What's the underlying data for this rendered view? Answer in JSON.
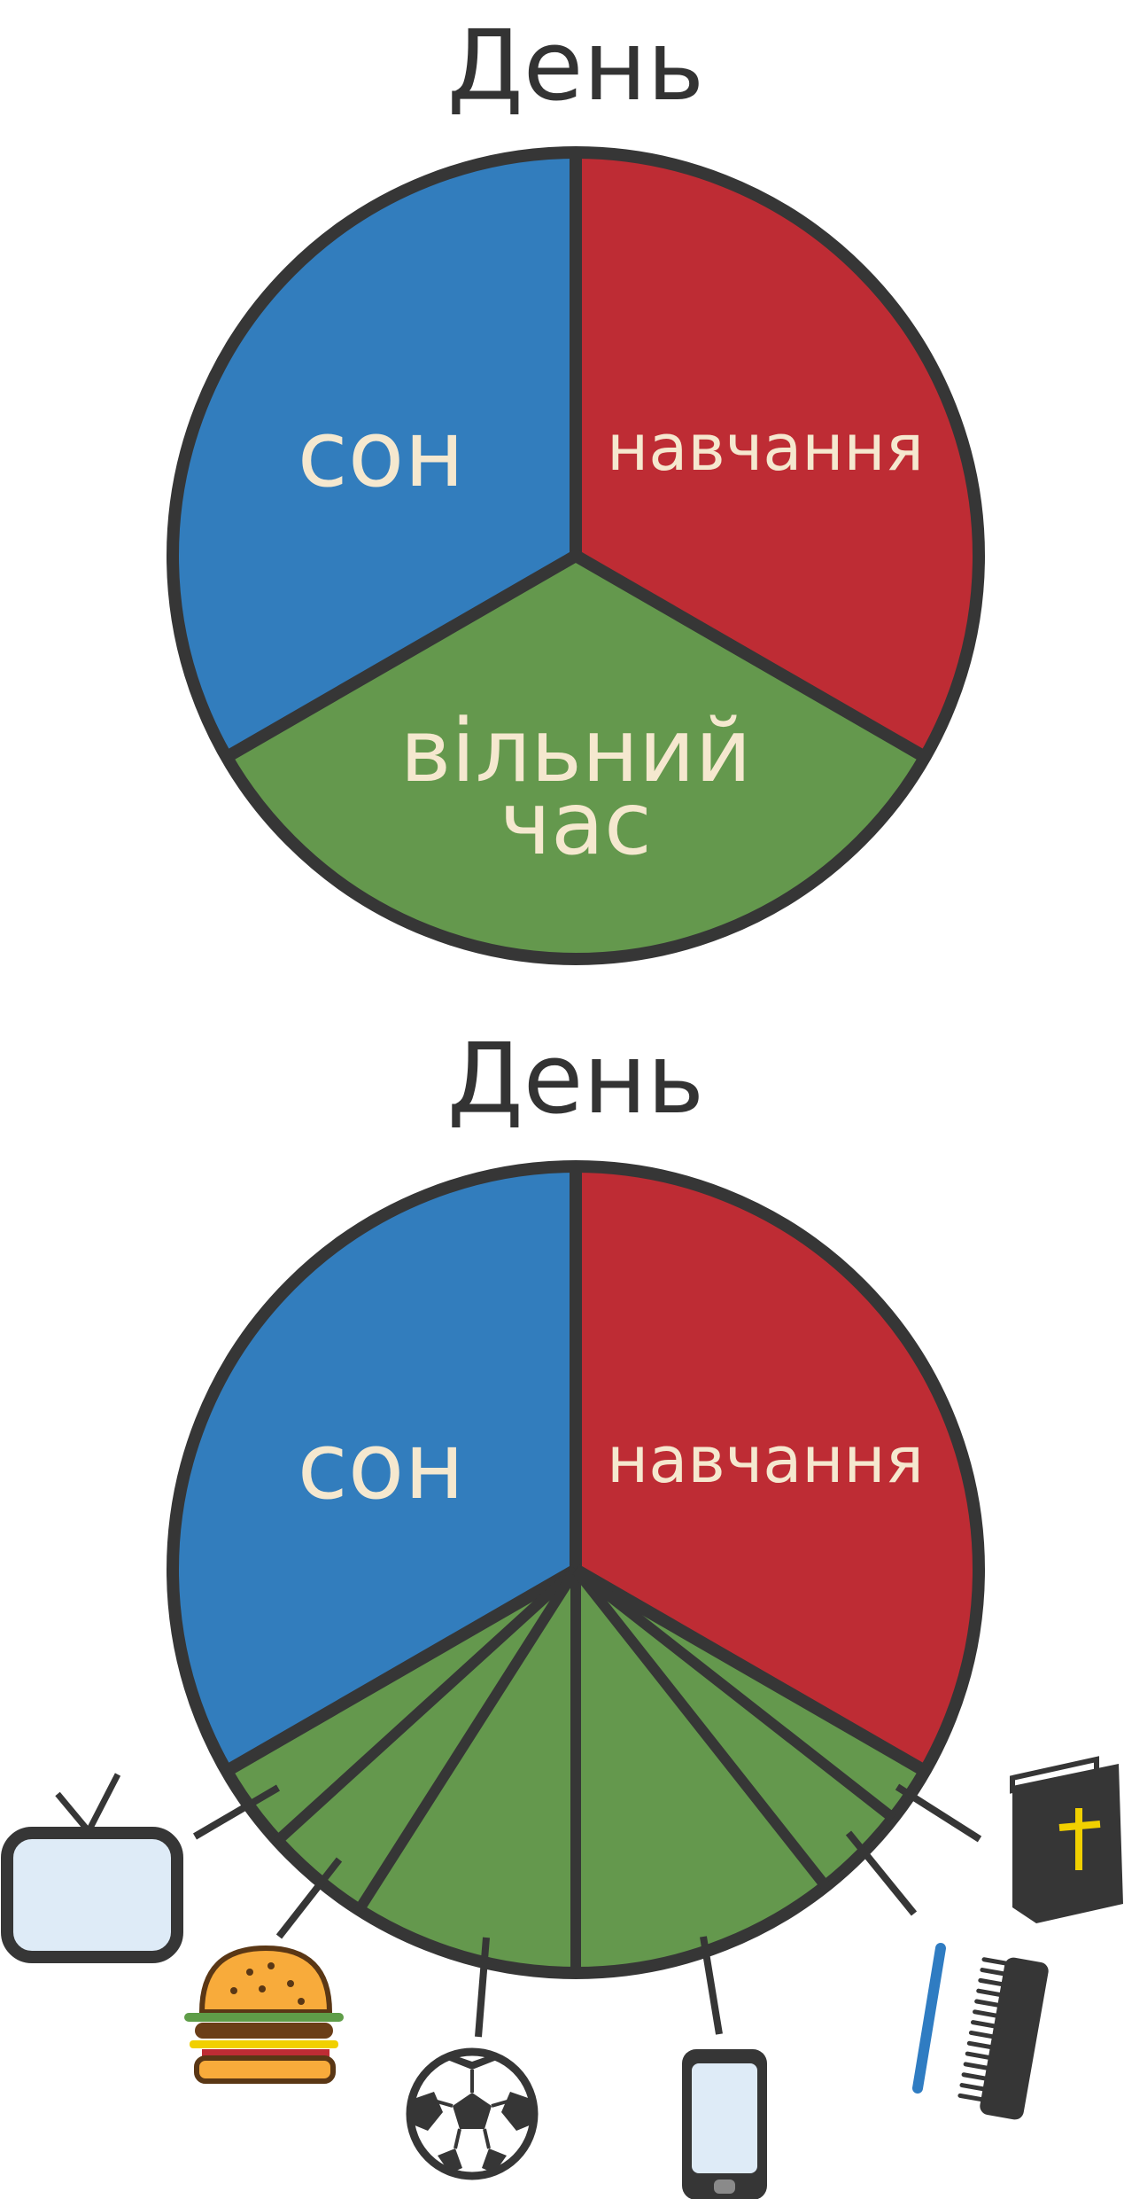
{
  "diagram1": {
    "title": "День",
    "segments": [
      {
        "label": "сон",
        "color": "#327dbd"
      },
      {
        "label": "навчання",
        "color": "#be2c34"
      },
      {
        "label_line1": "вільний",
        "label_line2": "час",
        "color": "#64984d"
      }
    ]
  },
  "diagram2": {
    "title": "День",
    "segments": [
      {
        "label": "сон",
        "color": "#327dbd"
      },
      {
        "label": "навчання",
        "color": "#be2c34"
      },
      {
        "label": "",
        "color": "#64984d"
      }
    ],
    "activity_icons": [
      "tv-icon",
      "burger-icon",
      "soccer-ball-icon",
      "phone-icon",
      "toothbrush-comb-icon",
      "bible-icon"
    ]
  },
  "colors": {
    "outline": "#363636",
    "label_text": "#f5e8cf",
    "title_text": "#333333",
    "screen_fill": "#deebf7",
    "book_cross": "#f1d000"
  }
}
